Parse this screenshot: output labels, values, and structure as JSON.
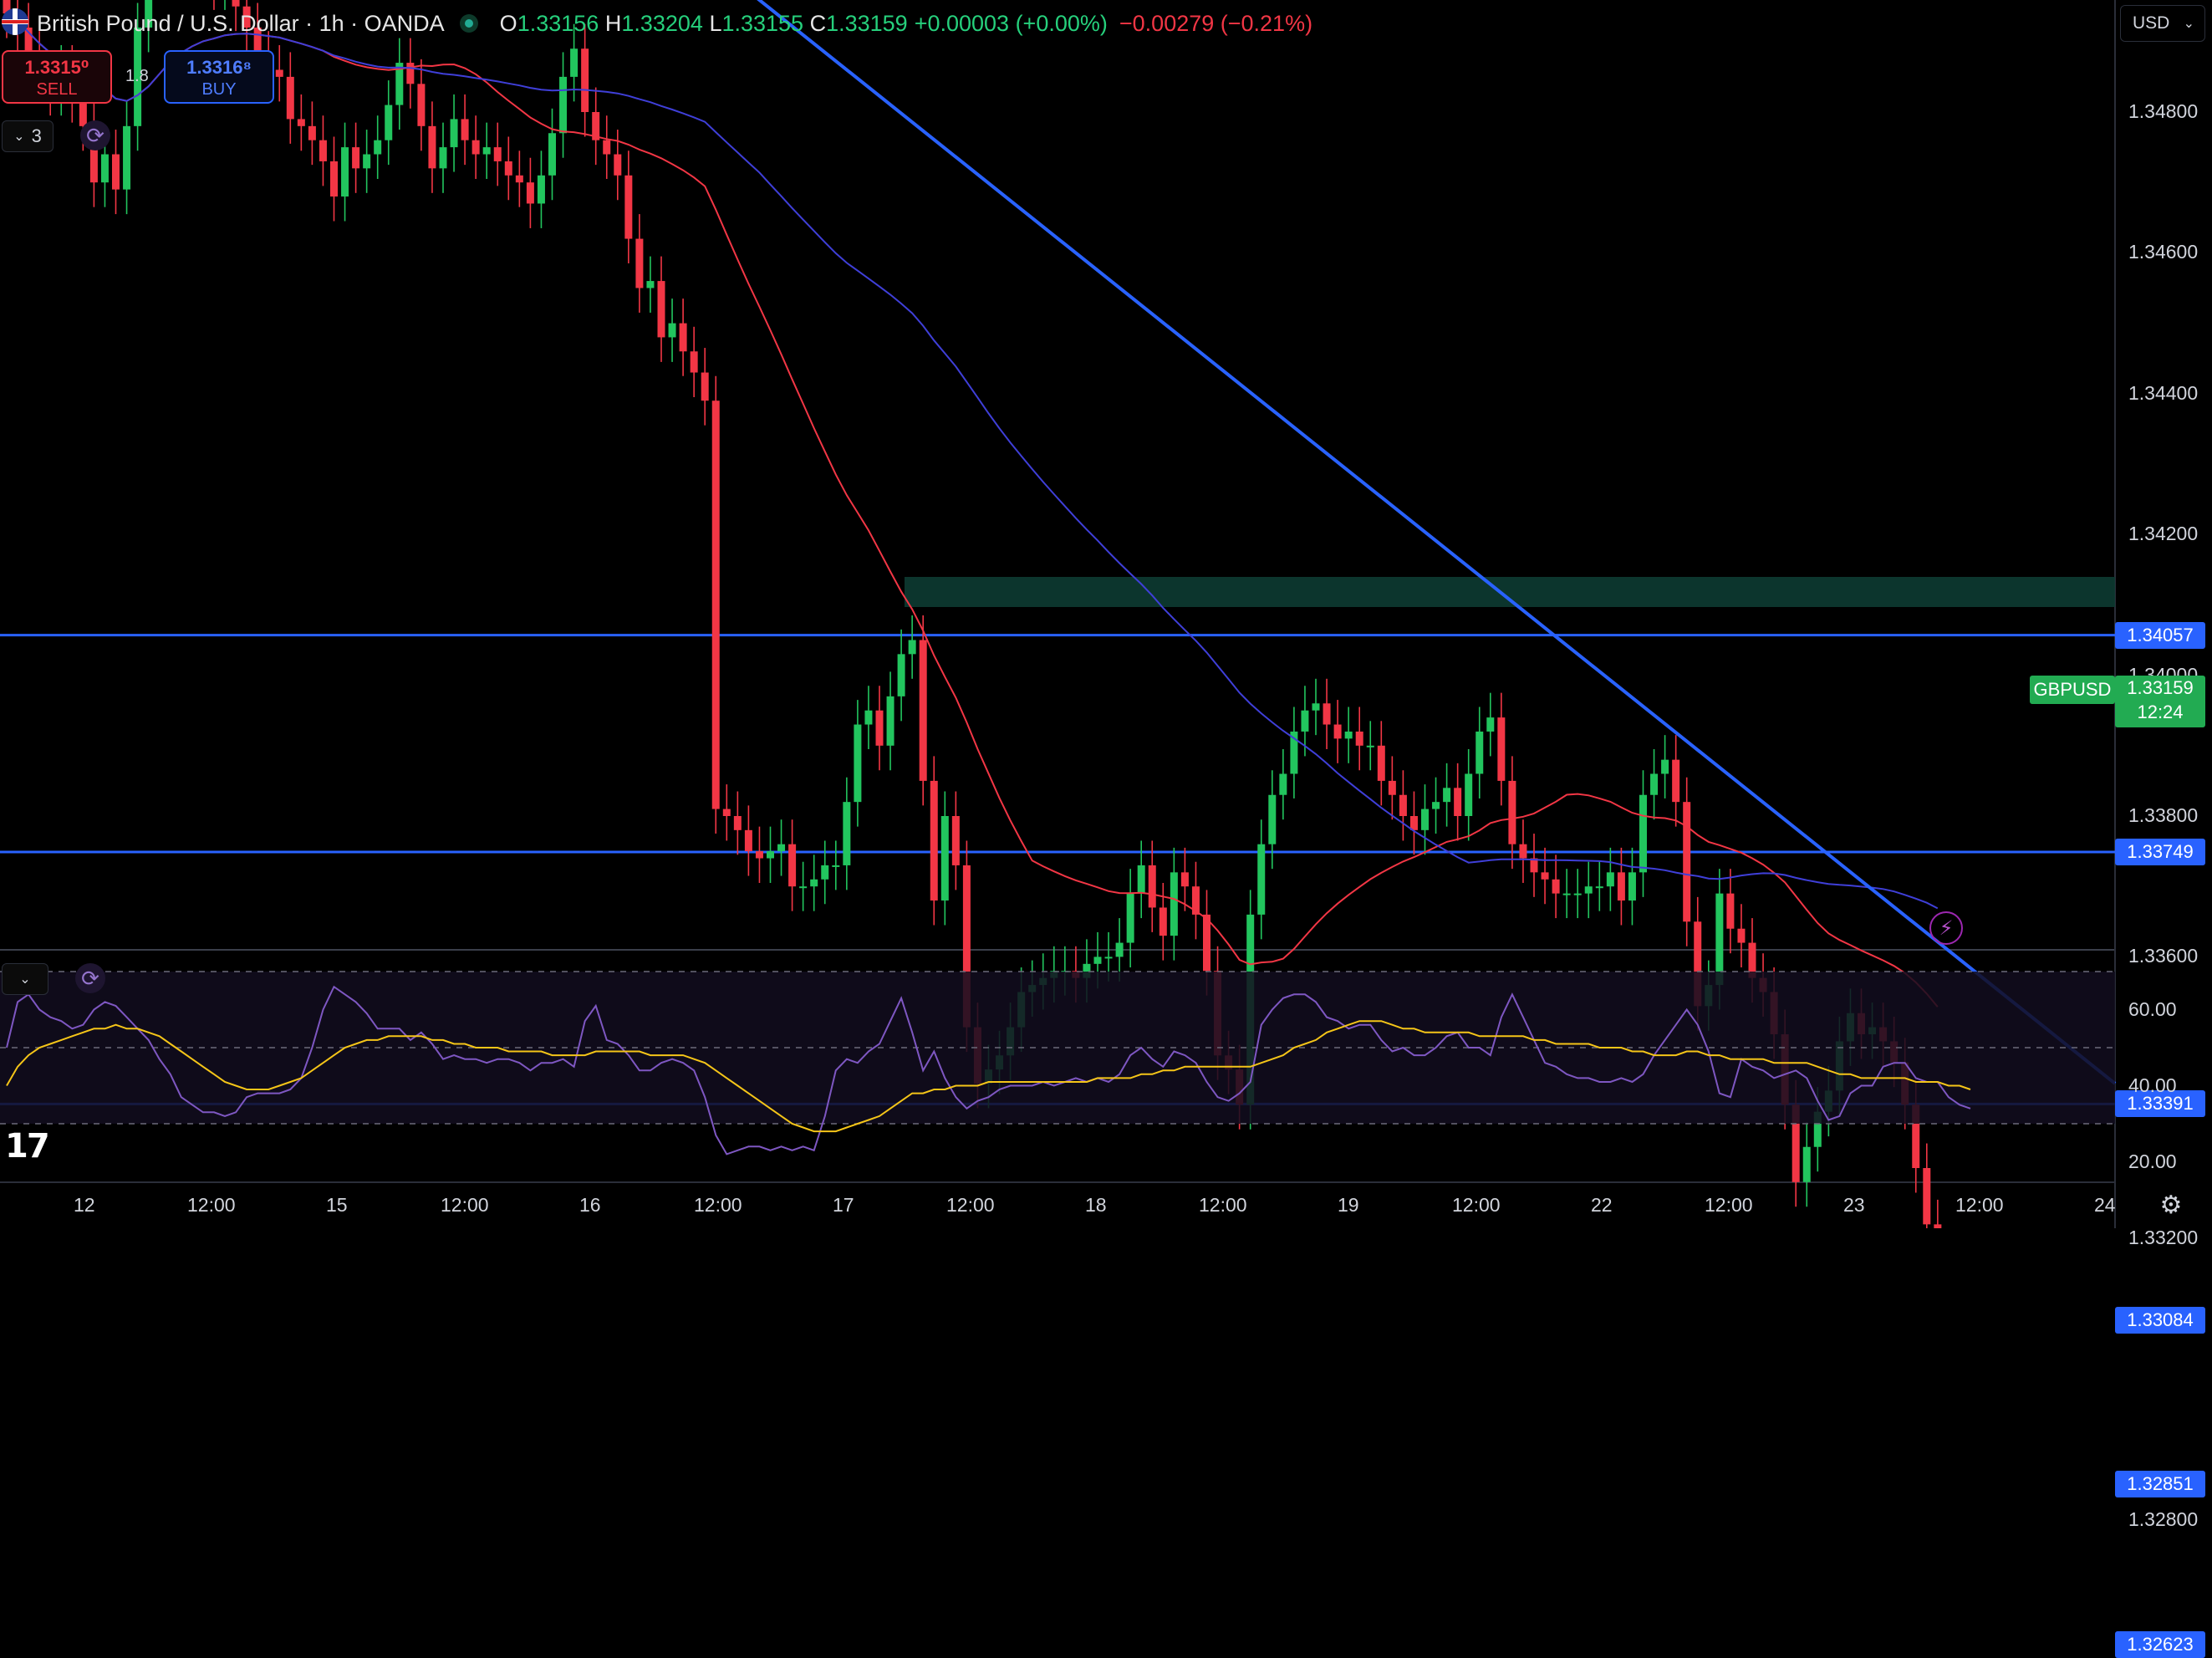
{
  "header": {
    "title": "British Pound / U.S. Dollar · 1h · OANDA",
    "open_label": "O",
    "open": "1.33156",
    "high_label": "H",
    "high": "1.33204",
    "low_label": "L",
    "low": "1.33155",
    "close_label": "C",
    "close": "1.33159",
    "change": "+0.00003 (+0.00%)",
    "change2": "−0.00279 (−0.21%)"
  },
  "trade": {
    "sell_price": "1.3315⁰",
    "sell_label": "SELL",
    "buy_price": "1.3316⁸",
    "buy_label": "BUY",
    "spread": "1.8"
  },
  "controls": {
    "indicator_count": "3",
    "currency": "USD"
  },
  "price_axis": {
    "ticks": [
      "1.34800",
      "1.34600",
      "1.34400",
      "1.34200",
      "1.34000",
      "1.33800",
      "1.33600",
      "1.33200",
      "1.32800"
    ],
    "tick_values": [
      1.348,
      1.346,
      1.344,
      1.342,
      1.34,
      1.338,
      1.336,
      1.332,
      1.328
    ]
  },
  "horizontal_levels": [
    {
      "label": "1.34057",
      "value": 1.34057
    },
    {
      "label": "1.33749",
      "value": 1.33749
    },
    {
      "label": "1.33391",
      "value": 1.33391
    },
    {
      "label": "1.33084",
      "value": 1.33084
    },
    {
      "label": "1.32851",
      "value": 1.32851
    },
    {
      "label": "1.32623",
      "value": 1.32623
    }
  ],
  "last_price": {
    "symbol": "GBPUSD",
    "price": "1.33159",
    "countdown": "12:24",
    "value": 1.33159
  },
  "time_axis": {
    "labels": [
      "12",
      "12:00",
      "15",
      "12:00",
      "16",
      "12:00",
      "17",
      "12:00",
      "18",
      "12:00",
      "19",
      "12:00",
      "22",
      "12:00",
      "23",
      "12:00",
      "24"
    ]
  },
  "rsi_axis": {
    "ticks": [
      "60.00",
      "40.00",
      "20.00"
    ],
    "tick_values": [
      60,
      40,
      20
    ],
    "bands": [
      70,
      50,
      30
    ]
  },
  "colors": {
    "up": "#26a69a",
    "up_body": "#22c55e",
    "down": "#f23645",
    "level": "#2962ff",
    "ma_fast": "#f23645",
    "ma_slow": "#3f3fd8",
    "trend": "#2962ff",
    "rsi": "#7e57c2",
    "rsi_ma": "#f5c518",
    "zone": "#0d3b32"
  },
  "icons": [
    "uk-us-flag-icon",
    "live-dot-icon",
    "refresh-icon",
    "chevron-down-icon",
    "settings-gear-icon",
    "bolt-icon",
    "tradingview-logo-icon"
  ],
  "chart_data": {
    "type": "candlestick",
    "interval": "1h",
    "closes": [
      1.3494,
      1.3492,
      1.3488,
      1.3485,
      1.3483,
      1.3486,
      1.3482,
      1.3478,
      1.347,
      1.3474,
      1.3469,
      1.3478,
      1.3492,
      1.35,
      1.351,
      1.3514,
      1.3508,
      1.3505,
      1.3503,
      1.3498,
      1.35,
      1.3495,
      1.3492,
      1.3488,
      1.3486,
      1.3485,
      1.3479,
      1.3478,
      1.3476,
      1.3473,
      1.3468,
      1.3475,
      1.3472,
      1.3474,
      1.3476,
      1.3481,
      1.3487,
      1.3484,
      1.3478,
      1.3472,
      1.3475,
      1.3479,
      1.3476,
      1.3474,
      1.3475,
      1.3473,
      1.3471,
      1.347,
      1.3467,
      1.3471,
      1.3477,
      1.3485,
      1.3489,
      1.348,
      1.3476,
      1.3474,
      1.3471,
      1.3462,
      1.3455,
      1.3456,
      1.3448,
      1.345,
      1.3446,
      1.3443,
      1.3439,
      1.3381,
      1.338,
      1.3378,
      1.3375,
      1.3374,
      1.3375,
      1.3376,
      1.337,
      1.337,
      1.3371,
      1.3373,
      1.3373,
      1.3382,
      1.3393,
      1.3395,
      1.339,
      1.3397,
      1.3403,
      1.3405,
      1.3385,
      1.3368,
      1.338,
      1.3373,
      1.335,
      1.3342,
      1.3344,
      1.3346,
      1.335,
      1.3355,
      1.3356,
      1.3357,
      1.3358,
      1.3358,
      1.3357,
      1.3359,
      1.336,
      1.336,
      1.3362,
      1.3369,
      1.3373,
      1.3367,
      1.3363,
      1.3372,
      1.337,
      1.3366,
      1.3358,
      1.3346,
      1.3344,
      1.3339,
      1.3366,
      1.3376,
      1.3383,
      1.3386,
      1.3392,
      1.3395,
      1.3396,
      1.3393,
      1.3391,
      1.3392,
      1.339,
      1.339,
      1.3385,
      1.3383,
      1.338,
      1.3378,
      1.3381,
      1.3382,
      1.3384,
      1.338,
      1.3386,
      1.3392,
      1.3394,
      1.3385,
      1.3376,
      1.3374,
      1.3372,
      1.3371,
      1.3369,
      1.3369,
      1.3369,
      1.337,
      1.337,
      1.3372,
      1.3368,
      1.3372,
      1.3383,
      1.3386,
      1.3388,
      1.3382,
      1.3365,
      1.3353,
      1.3356,
      1.3369,
      1.3364,
      1.3362,
      1.3357,
      1.3355,
      1.3349,
      1.3339,
      1.3328,
      1.3333,
      1.3338,
      1.3341,
      1.3348,
      1.3352,
      1.3349,
      1.335,
      1.3348,
      1.3345,
      1.3339,
      1.333,
      1.3322,
      1.3316
    ]
  },
  "rsi_data": {
    "values": [
      50,
      62,
      64,
      60,
      58,
      57,
      55,
      56,
      60,
      62,
      61,
      58,
      55,
      52,
      47,
      43,
      37,
      35,
      33,
      33,
      32,
      33,
      37,
      38,
      38,
      38,
      39,
      42,
      50,
      60,
      66,
      64,
      62,
      59,
      55,
      55,
      55,
      52,
      54,
      51,
      47,
      48,
      47,
      47,
      46,
      47,
      47,
      46,
      44,
      46,
      46,
      47,
      45,
      57,
      61,
      52,
      51,
      48,
      44,
      44,
      46,
      47,
      46,
      44,
      37,
      27,
      22,
      23,
      24,
      24,
      23,
      24,
      23,
      24,
      23,
      32,
      44,
      47,
      46,
      49,
      51,
      57,
      63,
      54,
      44,
      49,
      42,
      37,
      34,
      36,
      37,
      39,
      40,
      40,
      40,
      41,
      40,
      41,
      42,
      41,
      42,
      41,
      43,
      48,
      50,
      47,
      45,
      49,
      48,
      46,
      41,
      37,
      36,
      38,
      41,
      56,
      60,
      63,
      64,
      64,
      62,
      58,
      57,
      55,
      56,
      56,
      52,
      49,
      50,
      48,
      48,
      50,
      53,
      54,
      50,
      50,
      48,
      58,
      64,
      58,
      52,
      46,
      45,
      43,
      42,
      42,
      41,
      41,
      42,
      41,
      43,
      48,
      52,
      56,
      60,
      56,
      49,
      38,
      37,
      47,
      45,
      44,
      42,
      43,
      44,
      42,
      36,
      31,
      32,
      38,
      40,
      40,
      45,
      46,
      46,
      42,
      41,
      41,
      37,
      35,
      34
    ],
    "ma_values": [
      40,
      45,
      48,
      50,
      51,
      52,
      53,
      54,
      55,
      55,
      56,
      55,
      55,
      54,
      53,
      51,
      49,
      47,
      45,
      43,
      41,
      40,
      39,
      39,
      39,
      40,
      41,
      42,
      44,
      46,
      48,
      50,
      51,
      52,
      52,
      53,
      53,
      53,
      53,
      52,
      52,
      51,
      51,
      50,
      50,
      50,
      49,
      49,
      49,
      49,
      48,
      48,
      48,
      48,
      49,
      49,
      49,
      49,
      49,
      48,
      48,
      48,
      48,
      47,
      46,
      44,
      42,
      40,
      38,
      36,
      34,
      32,
      30,
      29,
      28,
      28,
      28,
      29,
      30,
      31,
      32,
      34,
      36,
      38,
      38,
      39,
      39,
      40,
      40,
      40,
      41,
      41,
      41,
      41,
      41,
      41,
      41,
      41,
      41,
      41,
      42,
      42,
      42,
      42,
      43,
      43,
      44,
      44,
      45,
      45,
      45,
      45,
      45,
      45,
      45,
      46,
      47,
      48,
      50,
      51,
      52,
      54,
      55,
      56,
      57,
      57,
      57,
      56,
      55,
      55,
      54,
      54,
      54,
      54,
      54,
      53,
      53,
      53,
      53,
      53,
      52,
      52,
      51,
      51,
      51,
      51,
      50,
      50,
      50,
      49,
      49,
      48,
      48,
      48,
      49,
      49,
      48,
      48,
      47,
      47,
      47,
      47,
      46,
      46,
      46,
      46,
      45,
      44,
      43,
      43,
      42,
      42,
      42,
      42,
      42,
      41,
      41,
      41,
      40,
      40,
      39
    ]
  }
}
